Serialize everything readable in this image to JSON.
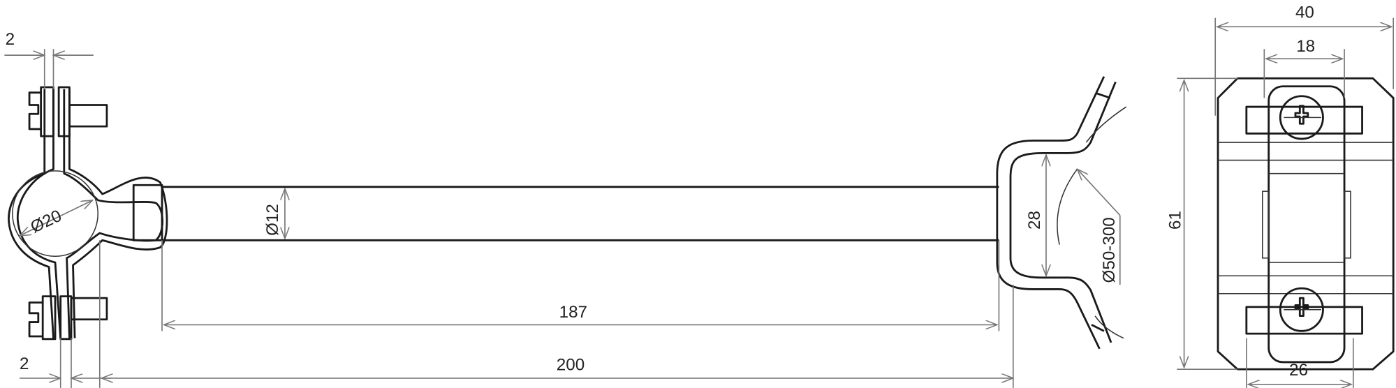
{
  "drawing": {
    "dimensions": {
      "top_thickness": "2",
      "bottom_thickness": "2",
      "clamp_diameter": "Ø20",
      "rod_diameter": "Ø12",
      "inner_length": "187",
      "total_length": "200",
      "saddle_height": "28",
      "pipe_range": "Ø50-300",
      "width_total": "40",
      "strap_width": "18",
      "base_width": "26",
      "height_total": "61"
    },
    "line_color": "#1a1a1a",
    "dimension_color": "#777777"
  }
}
